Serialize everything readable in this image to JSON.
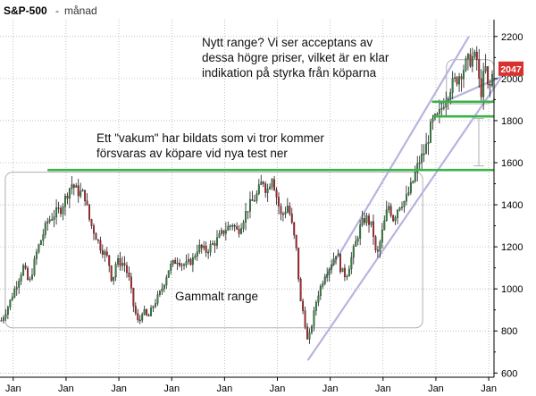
{
  "chart_data": {
    "type": "candlestick",
    "title": "S&P-500",
    "title_separator": "-",
    "subtitle": "månad",
    "ylim": [
      580,
      2280
    ],
    "y_ticks": [
      600,
      800,
      1000,
      1200,
      1400,
      1600,
      1800,
      2000,
      2200
    ],
    "y_tick_labels": [
      "600",
      "800",
      "1000",
      "1200",
      "1400",
      "1600",
      "1800",
      "2000",
      "2200"
    ],
    "x_range": [
      1997.5,
      2016.2
    ],
    "x_ticks": [
      1998,
      2000,
      2002,
      2004,
      2006,
      2008,
      2010,
      2012,
      2014,
      2016
    ],
    "x_tick_labels": [
      "Jan",
      "Jan",
      "Jan",
      "Jan",
      "Jan",
      "Jan",
      "Jan",
      "Jan",
      "Jan",
      "Jan"
    ],
    "last_price": 2047,
    "last_price_label": "2047",
    "keypoints": [
      [
        1997.55,
        850
      ],
      [
        1997.75,
        900
      ],
      [
        1998.0,
        980
      ],
      [
        1998.4,
        1110
      ],
      [
        1998.6,
        1020
      ],
      [
        1998.9,
        1180
      ],
      [
        1999.3,
        1320
      ],
      [
        1999.6,
        1360
      ],
      [
        1999.8,
        1380
      ],
      [
        2000.0,
        1440
      ],
      [
        2000.2,
        1500
      ],
      [
        2000.45,
        1460
      ],
      [
        2000.7,
        1450
      ],
      [
        2000.9,
        1320
      ],
      [
        2001.1,
        1260
      ],
      [
        2001.3,
        1200
      ],
      [
        2001.6,
        1140
      ],
      [
        2001.75,
        1030
      ],
      [
        2001.9,
        1130
      ],
      [
        2002.2,
        1120
      ],
      [
        2002.4,
        1040
      ],
      [
        2002.55,
        920
      ],
      [
        2002.75,
        830
      ],
      [
        2002.9,
        900
      ],
      [
        2003.1,
        860
      ],
      [
        2003.3,
        920
      ],
      [
        2003.6,
        990
      ],
      [
        2003.9,
        1100
      ],
      [
        2004.2,
        1140
      ],
      [
        2004.5,
        1110
      ],
      [
        2004.8,
        1140
      ],
      [
        2005.0,
        1200
      ],
      [
        2005.3,
        1180
      ],
      [
        2005.7,
        1230
      ],
      [
        2006.0,
        1280
      ],
      [
        2006.3,
        1310
      ],
      [
        2006.5,
        1270
      ],
      [
        2006.9,
        1390
      ],
      [
        2007.2,
        1440
      ],
      [
        2007.45,
        1520
      ],
      [
        2007.6,
        1460
      ],
      [
        2007.8,
        1540
      ],
      [
        2007.95,
        1450
      ],
      [
        2008.15,
        1340
      ],
      [
        2008.4,
        1400
      ],
      [
        2008.6,
        1270
      ],
      [
        2008.75,
        1160
      ],
      [
        2008.85,
        950
      ],
      [
        2009.0,
        880
      ],
      [
        2009.15,
        740
      ],
      [
        2009.3,
        830
      ],
      [
        2009.5,
        960
      ],
      [
        2009.8,
        1070
      ],
      [
        2010.0,
        1110
      ],
      [
        2010.25,
        1180
      ],
      [
        2010.4,
        1090
      ],
      [
        2010.6,
        1060
      ],
      [
        2010.9,
        1190
      ],
      [
        2011.15,
        1300
      ],
      [
        2011.35,
        1340
      ],
      [
        2011.6,
        1290
      ],
      [
        2011.75,
        1140
      ],
      [
        2011.95,
        1260
      ],
      [
        2012.2,
        1400
      ],
      [
        2012.4,
        1330
      ],
      [
        2012.6,
        1400
      ],
      [
        2012.85,
        1420
      ],
      [
        2013.1,
        1500
      ],
      [
        2013.35,
        1600
      ],
      [
        2013.6,
        1660
      ],
      [
        2013.85,
        1790
      ],
      [
        2014.1,
        1820
      ],
      [
        2014.3,
        1890
      ],
      [
        2014.55,
        1960
      ],
      [
        2014.8,
        2000
      ],
      [
        2015.0,
        2040
      ],
      [
        2015.2,
        2080
      ],
      [
        2015.4,
        2100
      ],
      [
        2015.55,
        2090
      ],
      [
        2015.65,
        1960
      ],
      [
        2015.75,
        1930
      ],
      [
        2015.85,
        2080
      ],
      [
        2016.0,
        1920
      ],
      [
        2016.1,
        2000
      ],
      [
        2016.2,
        2047
      ]
    ],
    "annotations": [
      {
        "lines": [
          "Nytt range? Vi ser acceptans av",
          "dessa högre priser, vilket är en klar",
          "indikation på styrka från köparna"
        ]
      },
      {
        "lines": [
          "Ett \"vakum\" har bildats som vi tror kommer",
          "försvaras av köpare vid nya test ner"
        ]
      },
      {
        "lines": [
          "Gammalt range"
        ]
      }
    ],
    "horizontal_levels": [
      {
        "y": 1565,
        "x_from": 1999.3,
        "x_to": 2016.2,
        "color": "#3cb34a"
      },
      {
        "y": 1890,
        "x_from": 2013.85,
        "x_to": 2016.2,
        "color": "#3cb34a"
      },
      {
        "y": 1820,
        "x_from": 2013.9,
        "x_to": 2016.2,
        "color": "#3cb34a"
      }
    ],
    "channel_lines": [
      {
        "x1": 2009.8,
        "y1": 1050,
        "x2": 2015.25,
        "y2": 2200,
        "color": "#b9b3e0"
      },
      {
        "x1": 2009.15,
        "y1": 660,
        "x2": 2016.5,
        "y2": 2010,
        "color": "#b9b3e0"
      },
      {
        "x1": 2014.15,
        "y1": 1880,
        "x2": 2016.5,
        "y2": 2010,
        "color": "#b9b3e0"
      }
    ],
    "range_boxes": [
      {
        "x1": 1997.7,
        "x2": 2013.5,
        "y1": 815,
        "y2": 1555
      },
      {
        "x1": 2014.4,
        "x2": 2016.2,
        "y1": 1880,
        "y2": 2090
      }
    ],
    "colors": {
      "up": "#2e8b3c",
      "down": "#b8202a",
      "tag": "#d8312e",
      "grid": "#000000"
    }
  }
}
